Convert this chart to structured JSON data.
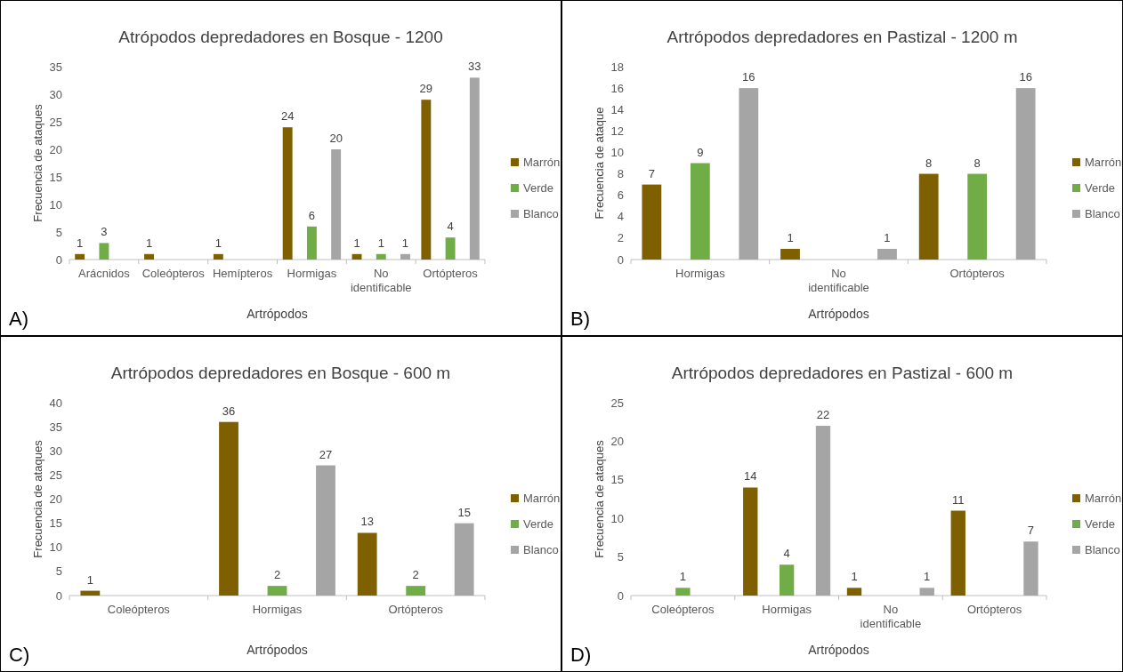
{
  "chart_data": [
    {
      "type": "bar",
      "title": "Atrópodos depredadores en Bosque - 1200",
      "xlabel": "Artrópodos",
      "ylabel": "Frecuencia de ataques",
      "categories": [
        "Arácnidos",
        "Coleópteros",
        "Hemípteros",
        "Hormigas",
        "No identificable",
        "Ortópteros"
      ],
      "series": [
        {
          "name": "Marrón",
          "color": "#7f6000",
          "values": [
            1,
            1,
            1,
            24,
            1,
            29
          ]
        },
        {
          "name": "Verde",
          "color": "#70ad47",
          "values": [
            3,
            null,
            null,
            6,
            1,
            4
          ]
        },
        {
          "name": "Blanco",
          "color": "#a5a5a5",
          "values": [
            null,
            null,
            null,
            20,
            1,
            33
          ]
        }
      ],
      "ylim": [
        0,
        35
      ],
      "yticks": [
        0,
        5,
        10,
        15,
        20,
        25,
        30,
        35
      ],
      "data_labels": true,
      "legend": "right",
      "annotations": [
        "A)"
      ]
    },
    {
      "type": "bar",
      "title": "Artrópodos depredadores en Pastizal - 1200 m",
      "xlabel": "Artrópodos",
      "ylabel": "Frecuencia de ataque",
      "categories": [
        "Hormigas",
        "No identificable",
        "Ortópteros"
      ],
      "series": [
        {
          "name": "Marrón",
          "color": "#7f6000",
          "values": [
            7,
            1,
            8
          ]
        },
        {
          "name": "Verde",
          "color": "#70ad47",
          "values": [
            9,
            null,
            8
          ]
        },
        {
          "name": "Blanco",
          "color": "#a5a5a5",
          "values": [
            16,
            1,
            16
          ]
        }
      ],
      "ylim": [
        0,
        18
      ],
      "yticks": [
        0,
        2,
        4,
        6,
        8,
        10,
        12,
        14,
        16,
        18
      ],
      "data_labels": true,
      "legend": "right",
      "annotations": [
        "B)"
      ]
    },
    {
      "type": "bar",
      "title": "Artrópodos depredadores en Bosque - 600 m",
      "xlabel": "Artrópodos",
      "ylabel": "Frecuencia de ataques",
      "categories": [
        "Coleópteros",
        "Hormigas",
        "Ortópteros"
      ],
      "series": [
        {
          "name": "Marrón",
          "color": "#7f6000",
          "values": [
            1,
            36,
            13
          ]
        },
        {
          "name": "Verde",
          "color": "#70ad47",
          "values": [
            null,
            2,
            2
          ]
        },
        {
          "name": "Blanco",
          "color": "#a5a5a5",
          "values": [
            null,
            27,
            15
          ]
        }
      ],
      "ylim": [
        0,
        40
      ],
      "yticks": [
        0,
        5,
        10,
        15,
        20,
        25,
        30,
        35,
        40
      ],
      "data_labels": true,
      "legend": "right",
      "annotations": [
        "C)"
      ]
    },
    {
      "type": "bar",
      "title": "Artrópodos depredadores en Pastizal - 600 m",
      "xlabel": "Artrópodos",
      "ylabel": "Frecuencia de ataques",
      "categories": [
        "Coleópteros",
        "Hormigas",
        "No identificable",
        "Ortópteros"
      ],
      "series": [
        {
          "name": "Marrón",
          "color": "#7f6000",
          "values": [
            null,
            14,
            1,
            11
          ]
        },
        {
          "name": "Verde",
          "color": "#70ad47",
          "values": [
            1,
            4,
            null,
            null
          ]
        },
        {
          "name": "Blanco",
          "color": "#a5a5a5",
          "values": [
            null,
            22,
            1,
            7
          ]
        }
      ],
      "ylim": [
        0,
        25
      ],
      "yticks": [
        0,
        5,
        10,
        15,
        20,
        25
      ],
      "data_labels": true,
      "legend": "right",
      "annotations": [
        "D)"
      ]
    }
  ]
}
